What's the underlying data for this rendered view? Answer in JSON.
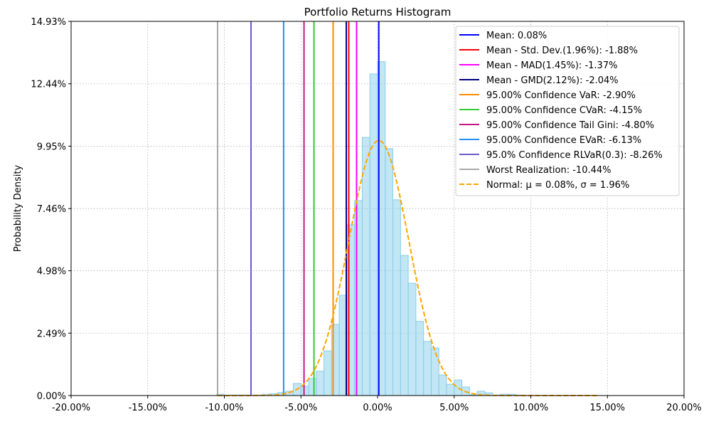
{
  "chart_data": {
    "type": "bar",
    "title": "Portfolio Returns Histogram",
    "xlabel": "",
    "ylabel": "Probability Density",
    "xlim": [
      -20,
      20
    ],
    "ylim": [
      0,
      14.93
    ],
    "xticks": [
      -20,
      -15,
      -10,
      -5,
      0,
      5,
      10,
      15,
      20
    ],
    "xtick_labels": [
      "-20.00%",
      "-15.00%",
      "-10.00%",
      "-5.00%",
      "0.00%",
      "5.00%",
      "10.00%",
      "15.00%",
      "20.00%"
    ],
    "yticks": [
      0,
      2.49,
      4.98,
      7.46,
      9.95,
      12.44,
      14.93
    ],
    "ytick_labels": [
      "0.00%",
      "2.49%",
      "4.98%",
      "7.46%",
      "9.95%",
      "12.44%",
      "14.93%"
    ],
    "grid": true,
    "legend_position": "top-right",
    "bin_width": 0.5,
    "bin_starts": [
      -10.5,
      -10,
      -9.5,
      -9,
      -8.5,
      -8,
      -7.5,
      -7,
      -6.5,
      -6,
      -5.5,
      -5,
      -4.5,
      -4,
      -3.5,
      -3,
      -2.5,
      -2,
      -1.5,
      -1,
      -0.5,
      0,
      0.5,
      1,
      1.5,
      2,
      2.5,
      3,
      3.5,
      4,
      4.5,
      5,
      5.5,
      6,
      6.5,
      7,
      7.5,
      8,
      8.5,
      9
    ],
    "bin_values": [
      0.05,
      0.02,
      0.02,
      0.02,
      0.02,
      0.02,
      0.05,
      0.07,
      0.12,
      0.17,
      0.48,
      0.37,
      0.68,
      0.97,
      1.78,
      2.84,
      4.0,
      6.81,
      7.78,
      10.3,
      12.83,
      13.32,
      9.85,
      7.81,
      5.59,
      4.48,
      2.96,
      2.16,
      1.9,
      0.82,
      0.45,
      0.62,
      0.34,
      0.03,
      0.17,
      0.11,
      0.02,
      0.05,
      0.05,
      0.02
    ],
    "bar_color": "#87ceeb",
    "vlines": [
      {
        "label": "Mean: 0.08%",
        "x": 0.08,
        "color": "#0000ff"
      },
      {
        "label": "Mean - Std. Dev.(1.96%): -1.88%",
        "x": -1.88,
        "color": "#ff0000"
      },
      {
        "label": "Mean - MAD(1.45%): -1.37%",
        "x": -1.37,
        "color": "#ff00ff"
      },
      {
        "label": "Mean - GMD(2.12%): -2.04%",
        "x": -2.04,
        "color": "#000080"
      },
      {
        "label": "95.00% Confidence VaR: -2.90%",
        "x": -2.9,
        "color": "#ff8c00"
      },
      {
        "label": "95.00% Confidence CVaR: -4.15%",
        "x": -4.15,
        "color": "#32cd32"
      },
      {
        "label": "95.00% Confidence Tail Gini: -4.80%",
        "x": -4.8,
        "color": "#c71585"
      },
      {
        "label": "95.00% Confidence EVaR: -6.13%",
        "x": -6.13,
        "color": "#1e90ff"
      },
      {
        "label": "95.0% Confidence RLVaR(0.3): -8.26%",
        "x": -8.26,
        "color": "#6a5acd"
      },
      {
        "label": "Worst Realization: -10.44%",
        "x": -10.44,
        "color": "#a9a9a9"
      }
    ],
    "normal": {
      "label": "Normal: μ = 0.08%, σ = 1.96%",
      "mu": 0.08,
      "sigma": 1.96,
      "x_range": [
        -10.44,
        14.4
      ],
      "color": "#ffa500"
    }
  }
}
